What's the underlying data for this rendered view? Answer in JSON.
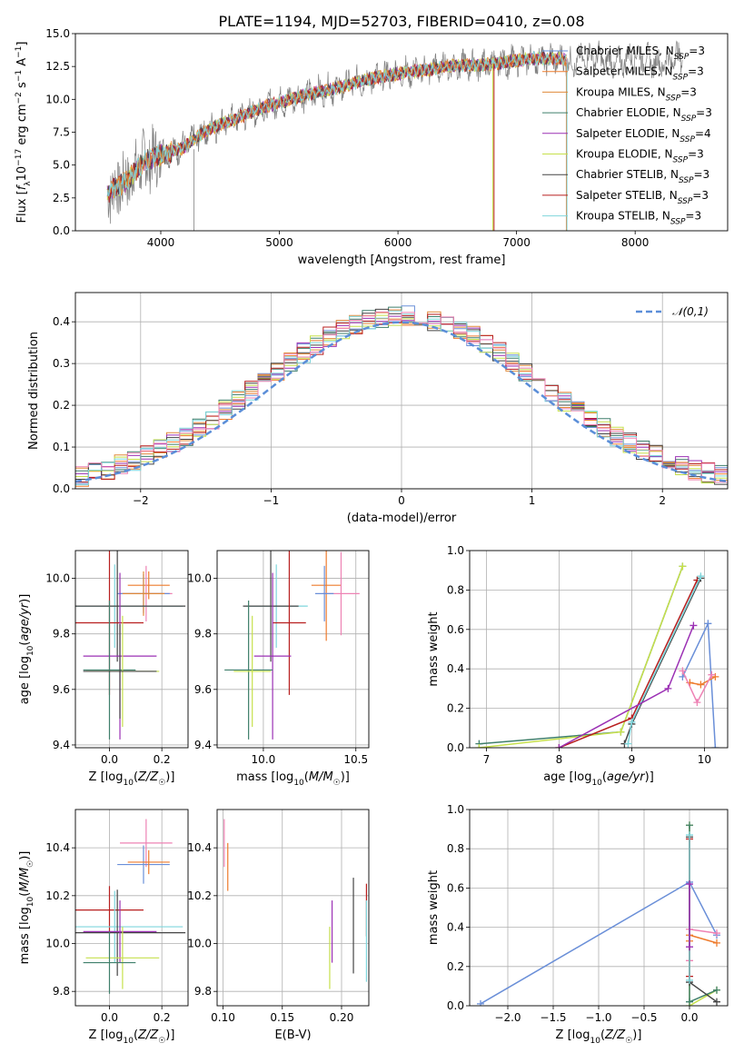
{
  "figure_title": "PLATE=1194, MJD=52703, FIBERID=0410, z=0.08",
  "colors": {
    "Chabrier MILES": "#6a8fd8",
    "Salpeter MILES": "#ee7b2c",
    "Kroupa MILES": "#e08a3a",
    "Chabrier ELODIE": "#3f7f6b",
    "Salpeter ELODIE": "#9b30b4",
    "Kroupa ELODIE": "#c6e04b",
    "Chabrier STELIB": "#444444",
    "Salpeter STELIB": "#b81f1f",
    "Kroupa STELIB": "#7fd6dc",
    "extra_pink": "#ee82b4",
    "gaussian": "#5b8ed8",
    "data_spectrum": "#808080"
  },
  "chart_data": [
    {
      "id": "spectrum",
      "type": "line",
      "title": "PLATE=1194, MJD=52703, FIBERID=0410, z=0.08",
      "xlabel": "wavelength [Angstrom, rest frame]",
      "ylabel": "Flux [f_λ 10^{-17} erg cm^{-2} s^{-1} A^{-1}]",
      "xlim": [
        3280,
        8780
      ],
      "ylim": [
        0,
        15
      ],
      "xticks": [
        "4000",
        "5000",
        "6000",
        "7000",
        "8000"
      ],
      "yticks": [
        "0.0",
        "2.5",
        "5.0",
        "7.5",
        "10.0",
        "12.5",
        "15.0"
      ],
      "legend_position": "upper-right",
      "legend": [
        "Chabrier MILES, N_SSP=3",
        "Salpeter MILES, N_SSP=3",
        "Kroupa MILES, N_SSP=3",
        "Chabrier ELODIE, N_SSP=3",
        "Salpeter ELODIE, N_SSP=4",
        "Kroupa ELODIE, N_SSP=3",
        "Chabrier STELIB, N_SSP=3",
        "Salpeter STELIB, N_SSP=3",
        "Kroupa STELIB, N_SSP=3"
      ],
      "continuum": {
        "wavelength": [
          3550,
          3700,
          3850,
          3950,
          4050,
          4200,
          4350,
          4500,
          4700,
          4900,
          5100,
          5300,
          5500,
          5700,
          5900,
          6100,
          6300,
          6500,
          6700,
          6900,
          7100,
          7300,
          7420
        ],
        "flux": [
          2.9,
          3.7,
          5.2,
          5.6,
          5.9,
          6.4,
          7.4,
          8.1,
          8.8,
          9.5,
          10.0,
          10.5,
          10.9,
          11.4,
          11.8,
          12.1,
          12.3,
          12.6,
          12.6,
          12.8,
          13.1,
          13.1,
          13.0
        ]
      },
      "data_extends_to": 8400
    },
    {
      "id": "residuals",
      "type": "histogram",
      "xlabel": "(data-model)/error",
      "ylabel": "Normed distribution",
      "xlim": [
        -2.5,
        2.5
      ],
      "ylim": [
        0,
        0.47
      ],
      "xticks": [
        "−2",
        "−1",
        "0",
        "1",
        "2"
      ],
      "yticks": [
        "0.0",
        "0.1",
        "0.2",
        "0.3",
        "0.4"
      ],
      "grid": true,
      "legend_position": "upper-right",
      "legend": [
        "𝒩(0,1)"
      ],
      "bin_width": 0.1,
      "reference_curve": "standard normal density"
    },
    {
      "id": "age-metallicity",
      "type": "errorbar",
      "xlabel": "Z [log10(Z/Z☉)]",
      "ylabel": "age [log10(age/yr)]",
      "xlim": [
        -0.13,
        0.3
      ],
      "ylim": [
        9.39,
        10.1
      ],
      "xticks": [
        "0.0",
        "0.2"
      ],
      "yticks": [
        "9.4",
        "9.6",
        "9.8",
        "10.0"
      ],
      "grid": true,
      "points": [
        {
          "series": "Salpeter MILES",
          "x": 0.15,
          "y": 9.975,
          "xerr": 0.08,
          "yerr": 0.05
        },
        {
          "series": "extra_pink",
          "x": 0.14,
          "y": 9.945,
          "xerr": 0.1,
          "yerr": 0.1
        },
        {
          "series": "Chabrier MILES",
          "x": 0.13,
          "y": 9.945,
          "xerr": 0.1,
          "yerr": 0.07
        },
        {
          "series": "Kroupa MILES",
          "x": 0.13,
          "y": 9.945,
          "xerr": 0.08,
          "yerr": 0.08
        },
        {
          "series": "Kroupa STELIB",
          "x": 0.02,
          "y": 9.9,
          "xerr": 0.26,
          "yerr": 0.15
        },
        {
          "series": "Chabrier STELIB",
          "x": 0.03,
          "y": 9.9,
          "xerr": 0.26,
          "yerr": 0.2
        },
        {
          "series": "Salpeter STELIB",
          "x": 0.0,
          "y": 9.84,
          "xerr": 0.13,
          "yerr": 0.26
        },
        {
          "series": "Salpeter ELODIE",
          "x": 0.04,
          "y": 9.72,
          "xerr": 0.14,
          "yerr": 0.3
        },
        {
          "series": "Chabrier ELODIE",
          "x": 0.0,
          "y": 9.67,
          "xerr": 0.1,
          "yerr": 0.25
        },
        {
          "series": "Kroupa ELODIE",
          "x": 0.05,
          "y": 9.665,
          "xerr": 0.14,
          "yerr": 0.2
        },
        {
          "series": "Chabrier STELIB",
          "x": 0.04,
          "y": 9.665,
          "xerr": 0.14,
          "yerr": 0.17
        }
      ]
    },
    {
      "id": "age-mass",
      "type": "errorbar",
      "xlabel": "mass [log10(M/M☉)]",
      "ylabel": "",
      "xlim": [
        9.75,
        10.57
      ],
      "ylim": [
        9.39,
        10.1
      ],
      "xticks": [
        "10.0",
        "10.5"
      ],
      "yticks": [
        "9.4",
        "9.6",
        "9.8",
        "10.0"
      ],
      "grid": true,
      "points": [
        {
          "series": "Salpeter MILES",
          "x": 10.34,
          "y": 9.975,
          "xerr": 0.08,
          "yerr": 0.2
        },
        {
          "series": "extra_pink",
          "x": 10.42,
          "y": 9.945,
          "xerr": 0.1,
          "yerr": 0.15
        },
        {
          "series": "Chabrier MILES",
          "x": 10.33,
          "y": 9.945,
          "xerr": 0.05,
          "yerr": 0.1
        },
        {
          "series": "Kroupa STELIB",
          "x": 10.07,
          "y": 9.9,
          "xerr": 0.17,
          "yerr": 0.15
        },
        {
          "series": "Chabrier STELIB",
          "x": 10.04,
          "y": 9.9,
          "xerr": 0.15,
          "yerr": 0.2
        },
        {
          "series": "Salpeter STELIB",
          "x": 10.14,
          "y": 9.84,
          "xerr": 0.09,
          "yerr": 0.26
        },
        {
          "series": "Salpeter ELODIE",
          "x": 10.05,
          "y": 9.72,
          "xerr": 0.1,
          "yerr": 0.3
        },
        {
          "series": "Chabrier ELODIE",
          "x": 9.92,
          "y": 9.67,
          "xerr": 0.13,
          "yerr": 0.25
        },
        {
          "series": "Kroupa ELODIE",
          "x": 9.94,
          "y": 9.665,
          "xerr": 0.1,
          "yerr": 0.2
        }
      ]
    },
    {
      "id": "weight-age",
      "type": "line",
      "xlabel": "age [log10(age/yr)]",
      "ylabel": "mass weight",
      "xlim": [
        6.77,
        10.32
      ],
      "ylim": [
        0,
        1
      ],
      "xticks": [
        "7",
        "8",
        "9",
        "10"
      ],
      "yticks": [
        "0.0",
        "0.2",
        "0.4",
        "0.6",
        "0.8",
        "1.0"
      ],
      "grid": true,
      "series": [
        {
          "name": "Chabrier ELODIE",
          "x": [
            6.9,
            8.85,
            9.7
          ],
          "y": [
            0.02,
            0.08,
            0.92
          ]
        },
        {
          "name": "Kroupa ELODIE",
          "x": [
            6.9,
            8.85,
            9.7
          ],
          "y": [
            0.0,
            0.08,
            0.92
          ]
        },
        {
          "name": "Salpeter STELIB",
          "x": [
            8.0,
            9.0,
            9.9
          ],
          "y": [
            0.0,
            0.15,
            0.85
          ]
        },
        {
          "name": "Chabrier STELIB",
          "x": [
            8.9,
            9.0,
            9.95
          ],
          "y": [
            0.02,
            0.12,
            0.86
          ]
        },
        {
          "name": "Kroupa STELIB",
          "x": [
            8.95,
            9.0,
            9.95
          ],
          "y": [
            0.02,
            0.13,
            0.87
          ]
        },
        {
          "name": "Salpeter ELODIE",
          "x": [
            8.0,
            9.5,
            9.85
          ],
          "y": [
            0.0,
            0.3,
            0.62
          ]
        },
        {
          "name": "Chabrier MILES",
          "x": [
            9.7,
            10.05,
            10.15
          ],
          "y": [
            0.36,
            0.63,
            0.0
          ]
        },
        {
          "name": "Salpeter MILES",
          "x": [
            9.8,
            9.95,
            10.15
          ],
          "y": [
            0.33,
            0.32,
            0.36
          ]
        },
        {
          "name": "extra_pink",
          "x": [
            9.7,
            9.9,
            10.1
          ],
          "y": [
            0.39,
            0.23,
            0.37
          ]
        }
      ]
    },
    {
      "id": "mass-metallicity",
      "type": "errorbar",
      "xlabel": "Z [log10(Z/Z☉)]",
      "ylabel": "mass [log10(M/M☉)]",
      "xlim": [
        -0.13,
        0.3
      ],
      "ylim": [
        9.74,
        10.56
      ],
      "xticks": [
        "0.0",
        "0.2"
      ],
      "yticks": [
        "9.8",
        "10.0",
        "10.2",
        "10.4"
      ],
      "grid": true,
      "points": [
        {
          "series": "extra_pink",
          "x": 0.14,
          "y": 10.42,
          "xerr": 0.1,
          "yerr": 0.1
        },
        {
          "series": "Chabrier MILES",
          "x": 0.13,
          "y": 10.33,
          "xerr": 0.1,
          "yerr": 0.08
        },
        {
          "series": "Salpeter MILES",
          "x": 0.15,
          "y": 10.34,
          "xerr": 0.08,
          "yerr": 0.05
        },
        {
          "series": "Salpeter STELIB",
          "x": 0.0,
          "y": 10.14,
          "xerr": 0.13,
          "yerr": 0.1
        },
        {
          "series": "Kroupa STELIB",
          "x": 0.02,
          "y": 10.07,
          "xerr": 0.26,
          "yerr": 0.15
        },
        {
          "series": "Chabrier STELIB",
          "x": 0.03,
          "y": 10.045,
          "xerr": 0.26,
          "yerr": 0.18
        },
        {
          "series": "Salpeter ELODIE",
          "x": 0.04,
          "y": 10.05,
          "xerr": 0.14,
          "yerr": 0.13
        },
        {
          "series": "Kroupa ELODIE",
          "x": 0.05,
          "y": 9.94,
          "xerr": 0.14,
          "yerr": 0.13
        },
        {
          "series": "Chabrier ELODIE",
          "x": 0.0,
          "y": 9.92,
          "xerr": 0.1,
          "yerr": 0.13
        }
      ]
    },
    {
      "id": "mass-ebv",
      "type": "errorbar",
      "xlabel": "E(B-V)",
      "ylabel": "",
      "xlim": [
        0.095,
        0.223
      ],
      "ylim": [
        9.74,
        10.56
      ],
      "xticks": [
        "0.10",
        "0.15",
        "0.20"
      ],
      "yticks": [
        "9.8",
        "10.0",
        "10.2",
        "10.4"
      ],
      "grid": true,
      "points": [
        {
          "series": "extra_pink",
          "x": 0.101,
          "y": 10.42,
          "xerr": 0,
          "yerr": 0.1
        },
        {
          "series": "Salpeter MILES",
          "x": 0.104,
          "y": 10.32,
          "xerr": 0,
          "yerr": 0.1
        },
        {
          "series": "Salpeter ELODIE",
          "x": 0.192,
          "y": 10.05,
          "xerr": 0,
          "yerr": 0.13
        },
        {
          "series": "Kroupa ELODIE",
          "x": 0.19,
          "y": 9.94,
          "xerr": 0,
          "yerr": 0.13
        },
        {
          "series": "Chabrier STELIB",
          "x": 0.21,
          "y": 10.075,
          "xerr": 0,
          "yerr": 0.2
        },
        {
          "series": "Salpeter STELIB",
          "x": 0.221,
          "y": 10.14,
          "xerr": 0,
          "yerr": 0.11
        },
        {
          "series": "Kroupa STELIB",
          "x": 0.221,
          "y": 10.01,
          "xerr": 0,
          "yerr": 0.17
        }
      ]
    },
    {
      "id": "weight-metallicity",
      "type": "line",
      "xlabel": "Z [log10(Z/Z☉)]",
      "ylabel": "mass weight",
      "xlim": [
        -2.42,
        0.42
      ],
      "ylim": [
        0,
        1
      ],
      "xticks": [
        "−2.0",
        "−1.5",
        "−1.0",
        "−0.5",
        "0.0"
      ],
      "yticks": [
        "0.0",
        "0.2",
        "0.4",
        "0.6",
        "0.8",
        "1.0"
      ],
      "grid": true,
      "series": [
        {
          "name": "Chabrier MILES",
          "x": [
            -2.3,
            0.0,
            0.3
          ],
          "y": [
            0.01,
            0.63,
            0.36
          ]
        },
        {
          "name": "Salpeter MILES",
          "x": [
            0.0,
            0.0,
            0.3
          ],
          "y": [
            0.33,
            0.36,
            0.32
          ]
        },
        {
          "name": "extra_pink",
          "x": [
            0.0,
            0.0,
            0.3
          ],
          "y": [
            0.23,
            0.39,
            0.37
          ]
        },
        {
          "name": "Kroupa ELODIE",
          "x": [
            0.0,
            0.0,
            0.3
          ],
          "y": [
            0.92,
            0.0,
            0.08
          ]
        },
        {
          "name": "Chabrier ELODIE",
          "x": [
            0.0,
            0.0,
            0.3
          ],
          "y": [
            0.92,
            0.02,
            0.08
          ]
        },
        {
          "name": "Chabrier STELIB",
          "x": [
            0.0,
            0.0,
            0.3
          ],
          "y": [
            0.86,
            0.12,
            0.02
          ]
        },
        {
          "name": "Salpeter STELIB",
          "x": [
            0.0,
            0.0
          ],
          "y": [
            0.85,
            0.15
          ]
        },
        {
          "name": "Kroupa STELIB",
          "x": [
            0.0,
            0.0
          ],
          "y": [
            0.87,
            0.13
          ]
        },
        {
          "name": "Salpeter ELODIE",
          "x": [
            0.0,
            0.0
          ],
          "y": [
            0.62,
            0.3
          ]
        }
      ]
    }
  ]
}
